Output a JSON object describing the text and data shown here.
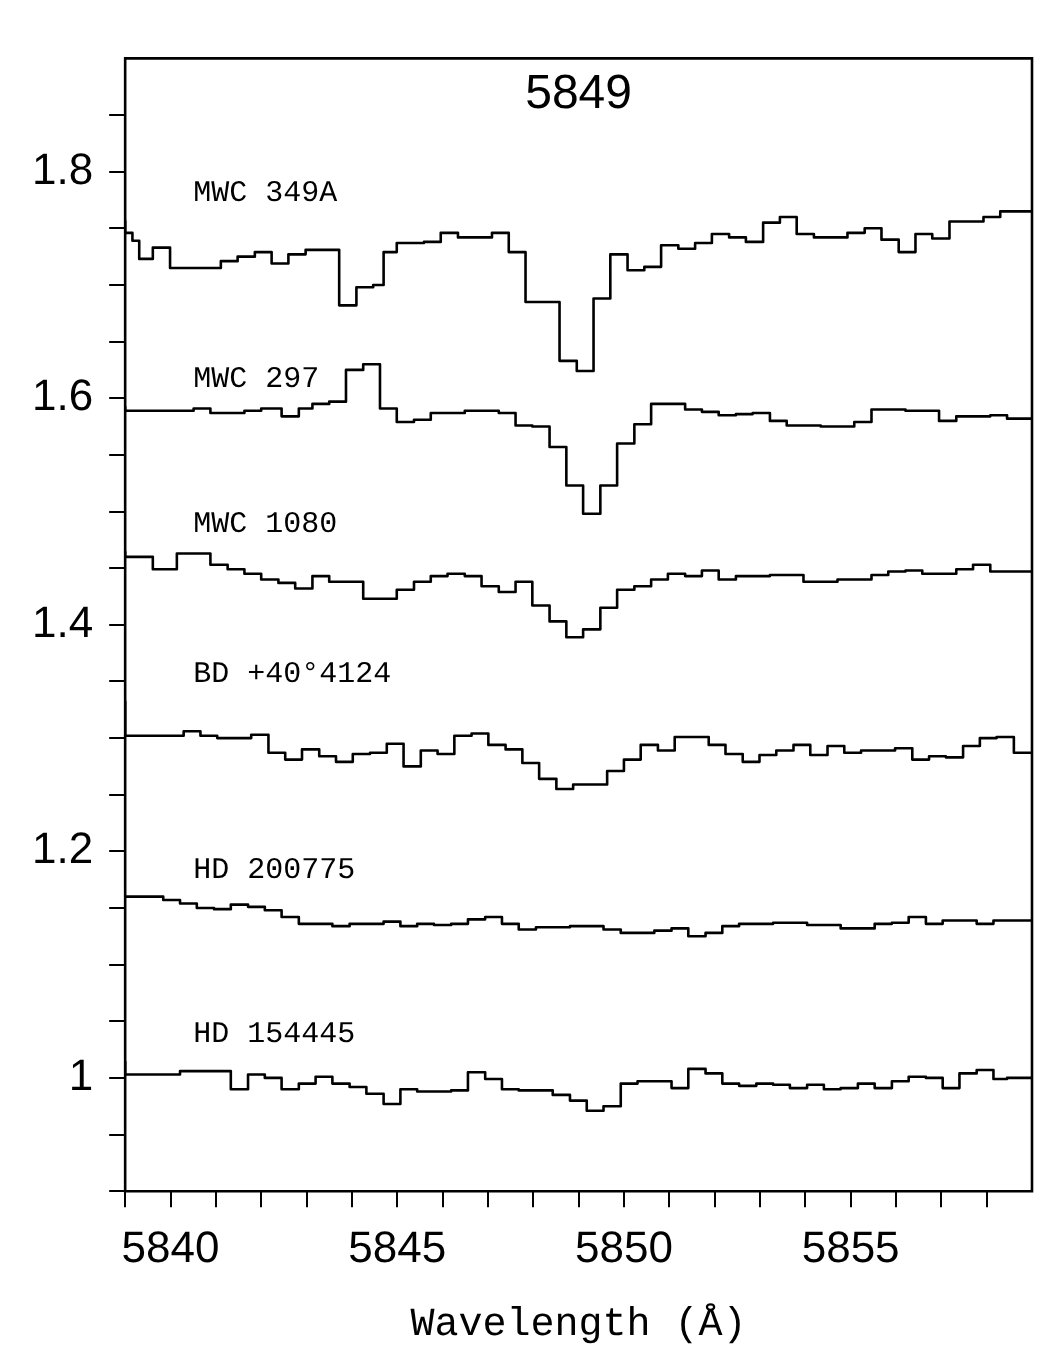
{
  "chart_data": {
    "type": "step",
    "title": "5849",
    "xlabel": "Wavelength (Å)",
    "xlim": [
      5839,
      5859
    ],
    "xticks": [
      {
        "value": 5839,
        "label": null
      },
      5840,
      {
        "value": 5841,
        "label": null
      },
      {
        "value": 5842,
        "label": null
      },
      {
        "value": 5843,
        "label": null
      },
      {
        "value": 5844,
        "label": null
      },
      5845,
      {
        "value": 5846,
        "label": null
      },
      {
        "value": 5847,
        "label": null
      },
      {
        "value": 5848,
        "label": null
      },
      {
        "value": 5849,
        "label": null
      },
      5850,
      {
        "value": 5851,
        "label": null
      },
      {
        "value": 5852,
        "label": null
      },
      {
        "value": 5853,
        "label": null
      },
      {
        "value": 5854,
        "label": null
      },
      5855,
      {
        "value": 5856,
        "label": null
      },
      {
        "value": 5857,
        "label": null
      },
      {
        "value": 5858,
        "label": null
      }
    ],
    "ylim": [
      0.9,
      1.9
    ],
    "yticks": [
      {
        "value": 0.9,
        "label": null
      },
      {
        "value": 0.95,
        "label": null
      },
      1,
      {
        "value": 1.05,
        "label": null
      },
      {
        "value": 1.1,
        "label": null
      },
      {
        "value": 1.15,
        "label": null
      },
      1.2,
      {
        "value": 1.25,
        "label": null
      },
      {
        "value": 1.3,
        "label": null
      },
      {
        "value": 1.35,
        "label": null
      },
      1.4,
      {
        "value": 1.45,
        "label": null
      },
      {
        "value": 1.5,
        "label": null
      },
      {
        "value": 1.55,
        "label": null
      },
      1.6,
      {
        "value": 1.65,
        "label": null
      },
      {
        "value": 1.7,
        "label": null
      },
      {
        "value": 1.75,
        "label": null
      },
      1.8,
      {
        "value": 1.85,
        "label": null
      }
    ],
    "grid": false,
    "legend": false,
    "marker": "none",
    "line_style": "solid",
    "series": [
      {
        "name": "MWC 349A",
        "color": "#000000",
        "x": [
          5839,
          5839.16,
          5839.31,
          5839.61,
          5839.99,
          5841.11,
          5841.48,
          5841.86,
          5842.23,
          5842.6,
          5842.98,
          5843.72,
          5844.1,
          5844.47,
          5844.7,
          5844.99,
          5845.59,
          5845.96,
          5846.34,
          5847.09,
          5847.46,
          5847.83,
          5848.58,
          5848.96,
          5849.33,
          5849.7,
          5850.08,
          5850.45,
          5850.82,
          5851.2,
          5851.57,
          5851.94,
          5852.32,
          5852.69,
          5853.07,
          5853.44,
          5853.81,
          5854.19,
          5854.93,
          5855.31,
          5855.68,
          5856.06,
          5856.43,
          5856.8,
          5857.18,
          5857.93,
          5858.3,
          5858.67,
          5859
        ],
        "values": [
          1.757,
          1.746,
          1.739,
          1.723,
          1.733,
          1.715,
          1.721,
          1.725,
          1.729,
          1.719,
          1.727,
          1.731,
          1.682,
          1.698,
          1.7,
          1.729,
          1.737,
          1.738,
          1.746,
          1.742,
          1.746,
          1.729,
          1.685,
          1.633,
          1.624,
          1.688,
          1.727,
          1.713,
          1.716,
          1.735,
          1.732,
          1.737,
          1.745,
          1.742,
          1.738,
          1.755,
          1.76,
          1.745,
          1.742,
          1.746,
          1.75,
          1.74,
          1.729,
          1.745,
          1.741,
          1.756,
          1.76,
          1.765,
          1.765
        ]
      },
      {
        "name": "MWC 297",
        "color": "#000000",
        "x": [
          5839,
          5840.51,
          5840.88,
          5841.63,
          5842,
          5842.45,
          5842.83,
          5843.13,
          5843.5,
          5843.87,
          5844.25,
          5844.62,
          5844.99,
          5845.37,
          5845.74,
          5846.49,
          5847.24,
          5847.61,
          5847.98,
          5848.36,
          5848.73,
          5849.1,
          5849.48,
          5849.85,
          5850.23,
          5850.6,
          5851.35,
          5851.72,
          5852.09,
          5852.47,
          5852.84,
          5853.22,
          5853.59,
          5854.34,
          5855.08,
          5855.46,
          5856.21,
          5856.95,
          5857.33,
          5858.08,
          5858.45,
          5858.82,
          5859
        ],
        "values": [
          1.593,
          1.589,
          1.591,
          1.587,
          1.589,
          1.591,
          1.584,
          1.591,
          1.595,
          1.597,
          1.625,
          1.63,
          1.591,
          1.579,
          1.581,
          1.587,
          1.589,
          1.587,
          1.576,
          1.575,
          1.557,
          1.523,
          1.498,
          1.523,
          1.56,
          1.577,
          1.595,
          1.59,
          1.588,
          1.585,
          1.586,
          1.587,
          1.58,
          1.576,
          1.575,
          1.579,
          1.59,
          1.589,
          1.58,
          1.584,
          1.585,
          1.582,
          1.582
        ]
      },
      {
        "name": "MWC 1080",
        "color": "#000000",
        "x": [
          5839,
          5839.61,
          5840.14,
          5840.88,
          5841.26,
          5841.63,
          5842,
          5842.38,
          5842.75,
          5843.13,
          5843.5,
          5844.25,
          5844.99,
          5845.37,
          5845.74,
          5846.11,
          5846.49,
          5846.86,
          5847.24,
          5847.61,
          5847.98,
          5848.36,
          5848.73,
          5849.1,
          5849.48,
          5849.85,
          5850.23,
          5850.6,
          5850.97,
          5851.35,
          5851.72,
          5852.09,
          5852.47,
          5853.22,
          5853.96,
          5854.71,
          5855.46,
          5855.83,
          5856.21,
          5856.58,
          5857.33,
          5857.7,
          5858.08,
          5858.45,
          5858.82,
          5859
        ],
        "values": [
          1.465,
          1.46,
          1.449,
          1.463,
          1.453,
          1.449,
          1.445,
          1.44,
          1.437,
          1.432,
          1.443,
          1.438,
          1.423,
          1.431,
          1.438,
          1.443,
          1.445,
          1.443,
          1.434,
          1.429,
          1.438,
          1.417,
          1.403,
          1.389,
          1.396,
          1.415,
          1.431,
          1.434,
          1.44,
          1.445,
          1.443,
          1.448,
          1.44,
          1.443,
          1.444,
          1.438,
          1.44,
          1.444,
          1.447,
          1.448,
          1.445,
          1.449,
          1.453,
          1.447,
          1.447,
          1.447
        ]
      },
      {
        "name": "BD +40°4124",
        "color": "#000000",
        "x": [
          5839,
          5840.29,
          5840.66,
          5841.03,
          5841.78,
          5842.16,
          5842.53,
          5842.9,
          5843.28,
          5843.65,
          5844.02,
          5844.4,
          5844.77,
          5845.14,
          5845.52,
          5845.89,
          5846.26,
          5846.64,
          5847.01,
          5847.39,
          5847.76,
          5848.13,
          5848.51,
          5848.88,
          5849.63,
          5850,
          5850.37,
          5850.75,
          5851.12,
          5851.87,
          5852.24,
          5852.62,
          5852.99,
          5853.36,
          5853.74,
          5854.11,
          5854.49,
          5854.86,
          5855.23,
          5855.98,
          5856.36,
          5856.73,
          5857.1,
          5857.48,
          5857.85,
          5858.22,
          5858.6,
          5858.9,
          5859
        ],
        "values": [
          1.333,
          1.302,
          1.306,
          1.302,
          1.3,
          1.303,
          1.287,
          1.281,
          1.29,
          1.284,
          1.279,
          1.286,
          1.287,
          1.295,
          1.275,
          1.289,
          1.286,
          1.302,
          1.304,
          1.294,
          1.29,
          1.278,
          1.264,
          1.255,
          1.259,
          1.271,
          1.281,
          1.294,
          1.289,
          1.301,
          1.294,
          1.286,
          1.279,
          1.285,
          1.289,
          1.294,
          1.285,
          1.293,
          1.287,
          1.289,
          1.291,
          1.281,
          1.284,
          1.283,
          1.293,
          1.3,
          1.301,
          1.287,
          1.287
        ]
      },
      {
        "name": "HD 200775",
        "color": "#000000",
        "x": [
          5839,
          5839.84,
          5840.21,
          5840.58,
          5840.96,
          5841.33,
          5841.71,
          5842.08,
          5842.45,
          5842.83,
          5843.57,
          5843.95,
          5844.7,
          5845.07,
          5845.44,
          5845.81,
          5846.19,
          5846.56,
          5846.94,
          5847.31,
          5847.68,
          5848.06,
          5848.81,
          5849.55,
          5849.93,
          5850.67,
          5851.05,
          5851.42,
          5851.8,
          5852.17,
          5852.54,
          5853.29,
          5854.04,
          5854.78,
          5855.53,
          5855.91,
          5856.28,
          5856.66,
          5857.03,
          5857.78,
          5858.15,
          5858.52,
          5859
        ],
        "values": [
          1.159,
          1.16,
          1.157,
          1.154,
          1.15,
          1.149,
          1.153,
          1.151,
          1.148,
          1.142,
          1.136,
          1.134,
          1.136,
          1.138,
          1.134,
          1.136,
          1.135,
          1.136,
          1.14,
          1.142,
          1.136,
          1.131,
          1.133,
          1.134,
          1.131,
          1.128,
          1.13,
          1.132,
          1.125,
          1.128,
          1.134,
          1.136,
          1.137,
          1.135,
          1.132,
          1.136,
          1.137,
          1.142,
          1.136,
          1.139,
          1.136,
          1.139,
          1.139
        ]
      },
      {
        "name": "HD 154445",
        "color": "#000000",
        "x": [
          5839,
          5840.21,
          5841.33,
          5841.71,
          5842.08,
          5842.45,
          5842.83,
          5843.2,
          5843.57,
          5843.95,
          5844.32,
          5844.7,
          5845.07,
          5845.44,
          5846.19,
          5846.56,
          5846.94,
          5847.31,
          5847.68,
          5848.43,
          5848.81,
          5849.18,
          5849.55,
          5849.93,
          5850.3,
          5851.05,
          5851.42,
          5851.8,
          5852.17,
          5852.54,
          5852.92,
          5853.29,
          5853.66,
          5854.04,
          5854.41,
          5854.78,
          5855.16,
          5855.53,
          5855.91,
          5856.28,
          5856.66,
          5857.03,
          5857.4,
          5857.78,
          5858.15,
          5858.45,
          5858.82,
          5859
        ],
        "values": [
          1.015,
          1.003,
          1.006,
          0.99,
          1.003,
          1.0,
          0.99,
          0.995,
          1.001,
          0.995,
          0.992,
          0.986,
          0.977,
          0.99,
          0.988,
          0.989,
          1.005,
          0.999,
          0.99,
          0.989,
          0.985,
          0.98,
          0.971,
          0.975,
          0.995,
          0.997,
          0.991,
          1.008,
          1.004,
          0.995,
          0.993,
          0.995,
          0.994,
          0.991,
          0.994,
          0.99,
          0.991,
          0.995,
          0.991,
          0.997,
          1.001,
          1.0,
          0.991,
          1.004,
          1.007,
          0.999,
          1.0,
          1.0
        ]
      }
    ]
  }
}
